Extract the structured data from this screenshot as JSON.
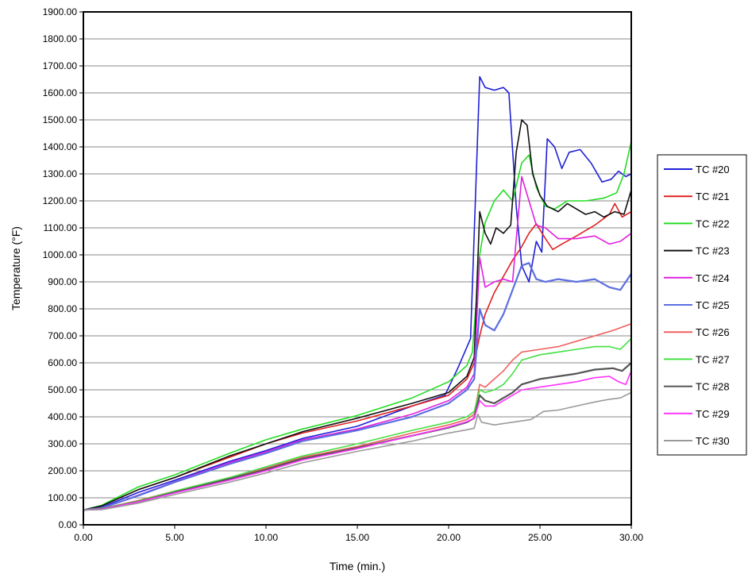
{
  "chart_data": {
    "type": "line",
    "xlabel": "Time (min.)",
    "ylabel": "Temperature (°F)",
    "xlim": [
      0,
      30
    ],
    "ylim": [
      0,
      1900
    ],
    "xticks": [
      "0.00",
      "5.00",
      "10.00",
      "15.00",
      "20.00",
      "25.00",
      "30.00"
    ],
    "yticks": [
      "0.00",
      "100.00",
      "200.00",
      "300.00",
      "400.00",
      "500.00",
      "600.00",
      "700.00",
      "800.00",
      "900.00",
      "1000.00",
      "1100.00",
      "1200.00",
      "1300.00",
      "1400.00",
      "1500.00",
      "1600.00",
      "1700.00",
      "1800.00",
      "1900.00"
    ],
    "grid": "horizontal",
    "legend_position": "right",
    "series": [
      {
        "name": "TC #20",
        "color": "#1f1fd6",
        "points": [
          [
            0,
            55
          ],
          [
            1,
            65
          ],
          [
            3,
            120
          ],
          [
            5,
            165
          ],
          [
            8,
            235
          ],
          [
            10,
            275
          ],
          [
            12,
            320
          ],
          [
            15,
            365
          ],
          [
            18,
            440
          ],
          [
            19.8,
            480
          ],
          [
            20.5,
            580
          ],
          [
            21.2,
            690
          ],
          [
            21.7,
            1660
          ],
          [
            22,
            1620
          ],
          [
            22.5,
            1610
          ],
          [
            23,
            1620
          ],
          [
            23.3,
            1600
          ],
          [
            23.7,
            1180
          ],
          [
            24,
            960
          ],
          [
            24.4,
            900
          ],
          [
            24.8,
            1050
          ],
          [
            25.1,
            1010
          ],
          [
            25.4,
            1430
          ],
          [
            25.8,
            1400
          ],
          [
            26.2,
            1320
          ],
          [
            26.6,
            1380
          ],
          [
            27.2,
            1390
          ],
          [
            27.8,
            1340
          ],
          [
            28.4,
            1270
          ],
          [
            28.9,
            1280
          ],
          [
            29.3,
            1310
          ],
          [
            29.7,
            1290
          ],
          [
            30,
            1300
          ]
        ]
      },
      {
        "name": "TC #21",
        "color": "#e02020",
        "points": [
          [
            0,
            55
          ],
          [
            1,
            70
          ],
          [
            3,
            130
          ],
          [
            5,
            175
          ],
          [
            8,
            250
          ],
          [
            10,
            300
          ],
          [
            12,
            340
          ],
          [
            15,
            385
          ],
          [
            18,
            440
          ],
          [
            20,
            480
          ],
          [
            21,
            540
          ],
          [
            21.4,
            600
          ],
          [
            21.7,
            700
          ],
          [
            22,
            780
          ],
          [
            22.5,
            860
          ],
          [
            23,
            920
          ],
          [
            23.5,
            980
          ],
          [
            24,
            1030
          ],
          [
            24.4,
            1080
          ],
          [
            24.8,
            1115
          ],
          [
            25.3,
            1060
          ],
          [
            25.7,
            1020
          ],
          [
            26.2,
            1040
          ],
          [
            27,
            1070
          ],
          [
            28,
            1110
          ],
          [
            28.8,
            1150
          ],
          [
            29.1,
            1190
          ],
          [
            29.5,
            1140
          ],
          [
            30,
            1160
          ]
        ]
      },
      {
        "name": "TC #22",
        "color": "#22dd22",
        "points": [
          [
            0,
            55
          ],
          [
            1,
            72
          ],
          [
            3,
            140
          ],
          [
            5,
            185
          ],
          [
            8,
            265
          ],
          [
            10,
            315
          ],
          [
            12,
            355
          ],
          [
            15,
            405
          ],
          [
            18,
            470
          ],
          [
            20,
            530
          ],
          [
            21,
            590
          ],
          [
            21.3,
            640
          ],
          [
            21.7,
            1000
          ],
          [
            22,
            1120
          ],
          [
            22.5,
            1200
          ],
          [
            23,
            1240
          ],
          [
            23.5,
            1200
          ],
          [
            24,
            1340
          ],
          [
            24.4,
            1370
          ],
          [
            24.8,
            1250
          ],
          [
            25.3,
            1180
          ],
          [
            25.8,
            1170
          ],
          [
            26.5,
            1200
          ],
          [
            27.5,
            1200
          ],
          [
            28.5,
            1210
          ],
          [
            29.2,
            1230
          ],
          [
            29.6,
            1300
          ],
          [
            30,
            1420
          ]
        ]
      },
      {
        "name": "TC #23",
        "color": "#111111",
        "points": [
          [
            0,
            55
          ],
          [
            1,
            70
          ],
          [
            3,
            130
          ],
          [
            5,
            175
          ],
          [
            8,
            255
          ],
          [
            10,
            300
          ],
          [
            12,
            345
          ],
          [
            15,
            395
          ],
          [
            18,
            450
          ],
          [
            20,
            490
          ],
          [
            21,
            550
          ],
          [
            21.4,
            620
          ],
          [
            21.7,
            1160
          ],
          [
            22,
            1080
          ],
          [
            22.3,
            1040
          ],
          [
            22.6,
            1100
          ],
          [
            23,
            1080
          ],
          [
            23.4,
            1110
          ],
          [
            23.7,
            1380
          ],
          [
            24,
            1500
          ],
          [
            24.3,
            1480
          ],
          [
            24.6,
            1300
          ],
          [
            25,
            1220
          ],
          [
            25.4,
            1180
          ],
          [
            26,
            1160
          ],
          [
            26.5,
            1190
          ],
          [
            27.5,
            1150
          ],
          [
            28,
            1160
          ],
          [
            28.5,
            1140
          ],
          [
            29.1,
            1160
          ],
          [
            29.6,
            1150
          ],
          [
            30,
            1240
          ]
        ]
      },
      {
        "name": "TC #24",
        "color": "#e020e0",
        "points": [
          [
            0,
            55
          ],
          [
            1,
            62
          ],
          [
            3,
            110
          ],
          [
            5,
            160
          ],
          [
            8,
            230
          ],
          [
            10,
            270
          ],
          [
            12,
            315
          ],
          [
            15,
            355
          ],
          [
            18,
            410
          ],
          [
            20,
            460
          ],
          [
            21,
            510
          ],
          [
            21.4,
            560
          ],
          [
            21.7,
            990
          ],
          [
            22,
            880
          ],
          [
            22.5,
            900
          ],
          [
            23,
            910
          ],
          [
            23.5,
            900
          ],
          [
            24,
            1290
          ],
          [
            24.4,
            1200
          ],
          [
            24.8,
            1110
          ],
          [
            25.3,
            1100
          ],
          [
            26,
            1060
          ],
          [
            27,
            1060
          ],
          [
            28,
            1070
          ],
          [
            28.8,
            1040
          ],
          [
            29.4,
            1050
          ],
          [
            30,
            1080
          ]
        ]
      },
      {
        "name": "TC #25",
        "color": "#5c6ee0",
        "points": [
          [
            0,
            55
          ],
          [
            1,
            62
          ],
          [
            3,
            108
          ],
          [
            5,
            158
          ],
          [
            8,
            225
          ],
          [
            10,
            265
          ],
          [
            12,
            310
          ],
          [
            15,
            350
          ],
          [
            18,
            400
          ],
          [
            20,
            450
          ],
          [
            21,
            500
          ],
          [
            21.4,
            540
          ],
          [
            21.7,
            800
          ],
          [
            22,
            740
          ],
          [
            22.5,
            720
          ],
          [
            23,
            780
          ],
          [
            23.5,
            870
          ],
          [
            24,
            960
          ],
          [
            24.4,
            970
          ],
          [
            24.8,
            910
          ],
          [
            25.3,
            900
          ],
          [
            26,
            910
          ],
          [
            27,
            900
          ],
          [
            28,
            910
          ],
          [
            28.8,
            880
          ],
          [
            29.4,
            870
          ],
          [
            30,
            930
          ]
        ]
      },
      {
        "name": "TC #26",
        "color": "#f06060",
        "points": [
          [
            0,
            55
          ],
          [
            1,
            60
          ],
          [
            3,
            90
          ],
          [
            5,
            125
          ],
          [
            8,
            175
          ],
          [
            10,
            210
          ],
          [
            12,
            250
          ],
          [
            15,
            290
          ],
          [
            18,
            340
          ],
          [
            20,
            370
          ],
          [
            21,
            390
          ],
          [
            21.4,
            410
          ],
          [
            21.7,
            520
          ],
          [
            22,
            510
          ],
          [
            22.5,
            540
          ],
          [
            23,
            570
          ],
          [
            23.5,
            610
          ],
          [
            24,
            640
          ],
          [
            25,
            650
          ],
          [
            26,
            660
          ],
          [
            27,
            680
          ],
          [
            28,
            700
          ],
          [
            29,
            720
          ],
          [
            30,
            745
          ]
        ]
      },
      {
        "name": "TC #27",
        "color": "#44e044",
        "points": [
          [
            0,
            55
          ],
          [
            1,
            60
          ],
          [
            3,
            88
          ],
          [
            5,
            125
          ],
          [
            8,
            175
          ],
          [
            10,
            215
          ],
          [
            12,
            255
          ],
          [
            15,
            300
          ],
          [
            18,
            350
          ],
          [
            20,
            380
          ],
          [
            21,
            400
          ],
          [
            21.4,
            420
          ],
          [
            21.7,
            500
          ],
          [
            22,
            490
          ],
          [
            22.5,
            500
          ],
          [
            23,
            520
          ],
          [
            23.5,
            560
          ],
          [
            24,
            610
          ],
          [
            25,
            630
          ],
          [
            26,
            640
          ],
          [
            27,
            650
          ],
          [
            28,
            660
          ],
          [
            28.8,
            660
          ],
          [
            29.4,
            650
          ],
          [
            30,
            690
          ]
        ]
      },
      {
        "name": "TC #28",
        "color": "#555555",
        "points": [
          [
            0,
            55
          ],
          [
            1,
            58
          ],
          [
            3,
            85
          ],
          [
            5,
            120
          ],
          [
            8,
            170
          ],
          [
            10,
            205
          ],
          [
            12,
            245
          ],
          [
            15,
            285
          ],
          [
            18,
            330
          ],
          [
            20,
            360
          ],
          [
            21,
            380
          ],
          [
            21.4,
            395
          ],
          [
            21.7,
            480
          ],
          [
            22,
            460
          ],
          [
            22.5,
            450
          ],
          [
            23,
            470
          ],
          [
            23.5,
            490
          ],
          [
            24,
            520
          ],
          [
            25,
            540
          ],
          [
            26,
            550
          ],
          [
            27,
            560
          ],
          [
            28,
            575
          ],
          [
            29,
            580
          ],
          [
            29.5,
            570
          ],
          [
            30,
            600
          ]
        ]
      },
      {
        "name": "TC #29",
        "color": "#ff33ff",
        "points": [
          [
            0,
            55
          ],
          [
            1,
            58
          ],
          [
            3,
            85
          ],
          [
            5,
            118
          ],
          [
            8,
            165
          ],
          [
            10,
            200
          ],
          [
            12,
            240
          ],
          [
            15,
            282
          ],
          [
            18,
            330
          ],
          [
            20,
            362
          ],
          [
            21,
            382
          ],
          [
            21.4,
            395
          ],
          [
            21.7,
            460
          ],
          [
            22,
            440
          ],
          [
            22.5,
            440
          ],
          [
            23,
            460
          ],
          [
            23.5,
            480
          ],
          [
            24,
            500
          ],
          [
            25,
            510
          ],
          [
            26,
            520
          ],
          [
            27,
            530
          ],
          [
            28,
            545
          ],
          [
            28.8,
            550
          ],
          [
            29.3,
            530
          ],
          [
            29.7,
            520
          ],
          [
            30,
            570
          ]
        ]
      },
      {
        "name": "TC #30",
        "color": "#9a9a9a",
        "points": [
          [
            0,
            55
          ],
          [
            1,
            56
          ],
          [
            3,
            80
          ],
          [
            5,
            112
          ],
          [
            8,
            158
          ],
          [
            10,
            192
          ],
          [
            12,
            230
          ],
          [
            15,
            272
          ],
          [
            18,
            310
          ],
          [
            20,
            340
          ],
          [
            21,
            352
          ],
          [
            21.4,
            358
          ],
          [
            21.6,
            410
          ],
          [
            21.8,
            380
          ],
          [
            22.5,
            370
          ],
          [
            23.5,
            380
          ],
          [
            24.5,
            390
          ],
          [
            25.2,
            420
          ],
          [
            26,
            425
          ],
          [
            27,
            440
          ],
          [
            28,
            455
          ],
          [
            28.8,
            465
          ],
          [
            29.4,
            470
          ],
          [
            30,
            490
          ]
        ]
      }
    ]
  }
}
